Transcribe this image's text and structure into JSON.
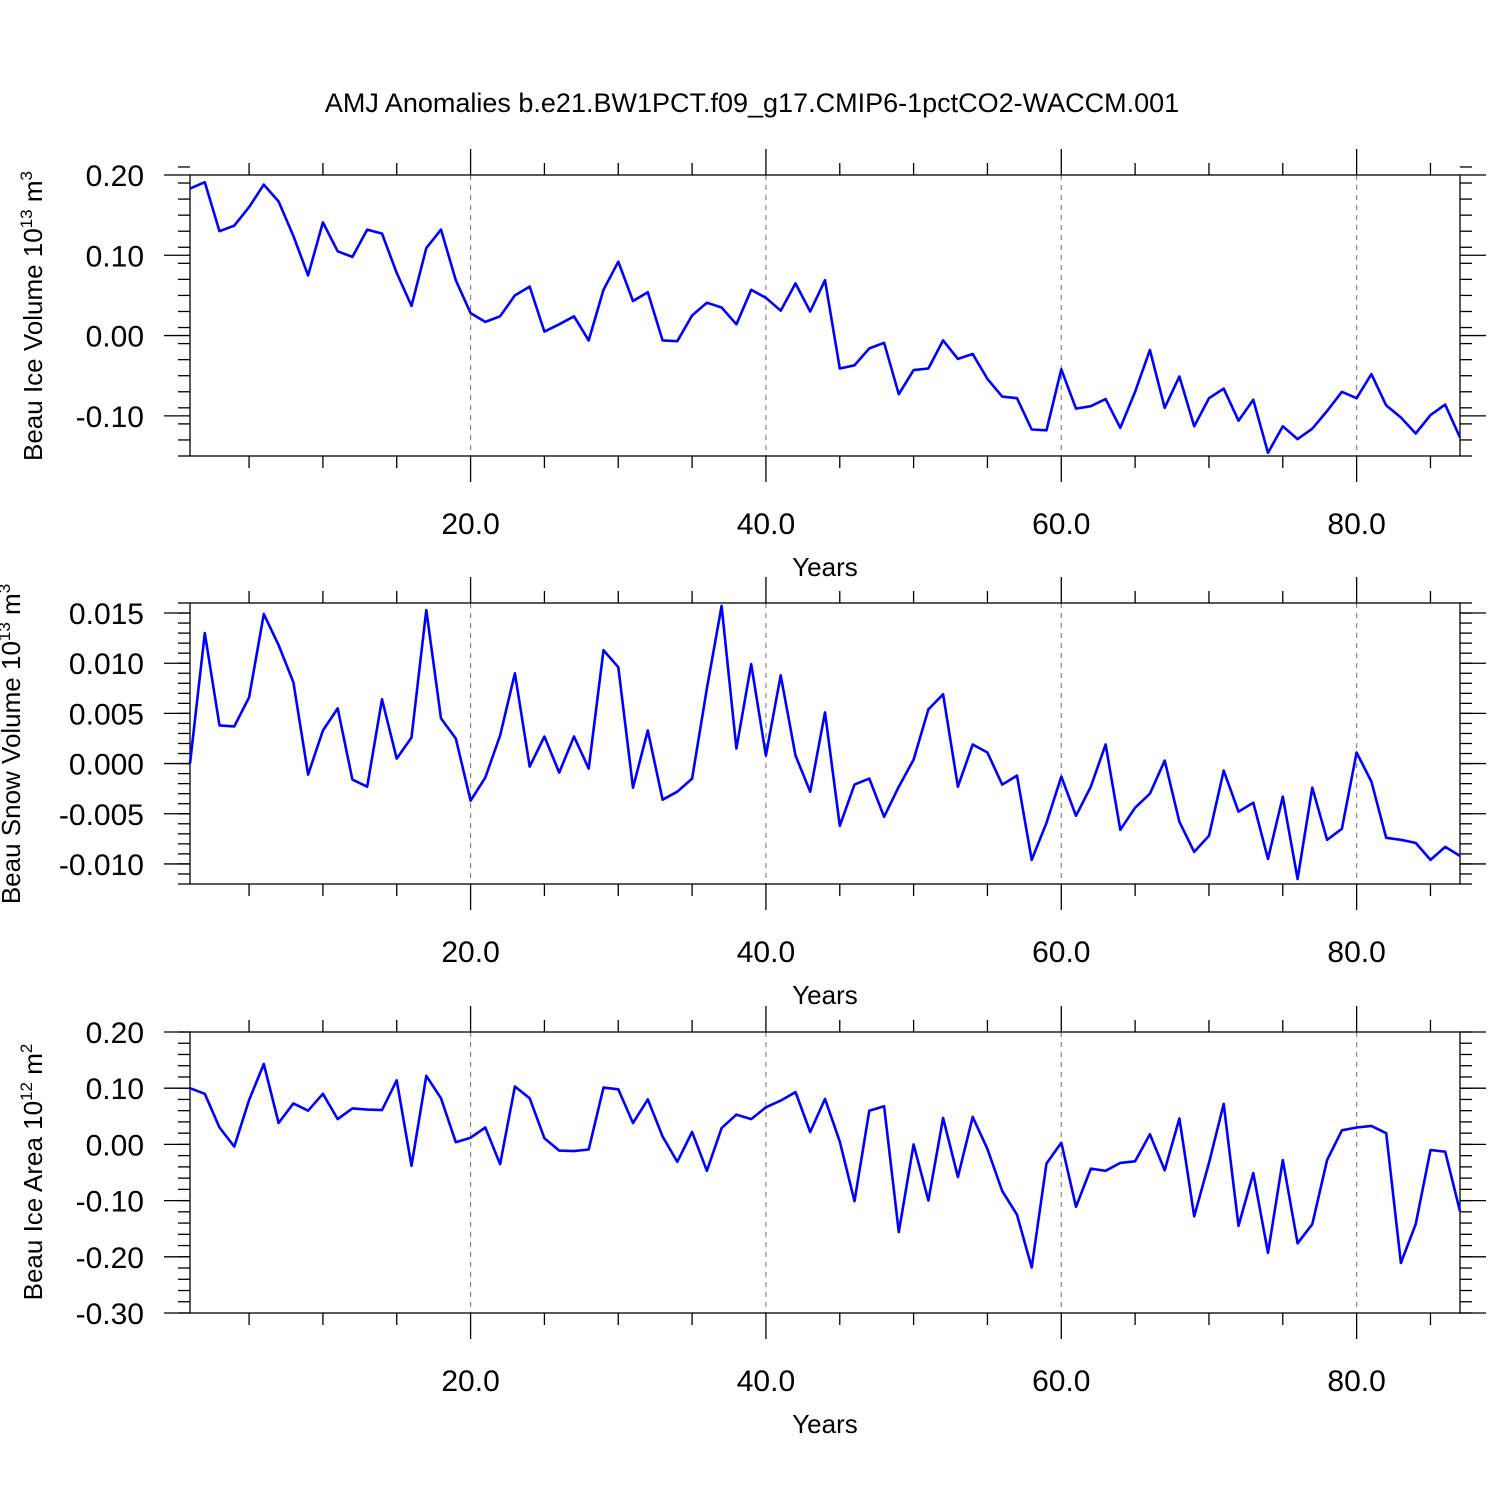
{
  "title": "AMJ Anomalies b.e21.BW1PCT.f09_g17.CMIP6-1pctCO2-WACCM.001",
  "colors": {
    "series": "#0000ff",
    "frame": "#000000",
    "grid": "#888888"
  },
  "chart_data": [
    {
      "type": "line",
      "title": "AMJ Anomalies b.e21.BW1PCT.f09_g17.CMIP6-1pctCO2-WACCM.001",
      "xlabel": "Years",
      "ylabel": "Beau Ice Volume 10",
      "ylabel_sup": "13",
      "ylabel_unit": " m",
      "ylabel_unit_sup": "3",
      "xlim": [
        1,
        87
      ],
      "ylim": [
        -0.15,
        0.2
      ],
      "x_ticks": [
        20,
        40,
        60,
        80
      ],
      "x_tick_labels": [
        "20.0",
        "40.0",
        "60.0",
        "80.0"
      ],
      "y_ticks": [
        -0.1,
        0.0,
        0.1,
        0.2
      ],
      "y_tick_labels": [
        "-0.10",
        "0.00",
        "0.10",
        "0.20"
      ],
      "y_minor_step": 0.02,
      "grid": "dashed vertical at major x ticks",
      "x": [
        1,
        2,
        3,
        4,
        5,
        6,
        7,
        8,
        9,
        10,
        11,
        12,
        13,
        14,
        15,
        16,
        17,
        18,
        19,
        20,
        21,
        22,
        23,
        24,
        25,
        26,
        27,
        28,
        29,
        30,
        31,
        32,
        33,
        34,
        35,
        36,
        37,
        38,
        39,
        40,
        41,
        42,
        43,
        44,
        45,
        46,
        47,
        48,
        49,
        50,
        51,
        52,
        53,
        54,
        55,
        56,
        57,
        58,
        59,
        60,
        61,
        62,
        63,
        64,
        65,
        66,
        67,
        68,
        69,
        70,
        71,
        72,
        73,
        74,
        75,
        76,
        77,
        78,
        79,
        80,
        81,
        82,
        83,
        84,
        85,
        86,
        87
      ],
      "values": [
        0.183,
        0.191,
        0.13,
        0.137,
        0.16,
        0.188,
        0.167,
        0.124,
        0.075,
        0.141,
        0.105,
        0.098,
        0.132,
        0.127,
        0.078,
        0.037,
        0.109,
        0.132,
        0.069,
        0.028,
        0.017,
        0.024,
        0.05,
        0.061,
        0.005,
        0.014,
        0.024,
        -0.006,
        0.057,
        0.092,
        0.043,
        0.054,
        -0.006,
        -0.007,
        0.025,
        0.041,
        0.035,
        0.014,
        0.057,
        0.047,
        0.031,
        0.065,
        0.03,
        0.069,
        -0.041,
        -0.037,
        -0.016,
        -0.009,
        -0.073,
        -0.043,
        -0.041,
        -0.006,
        -0.029,
        -0.023,
        -0.054,
        -0.076,
        -0.078,
        -0.117,
        -0.118,
        -0.042,
        -0.091,
        -0.088,
        -0.079,
        -0.115,
        -0.07,
        -0.018,
        -0.09,
        -0.051,
        -0.113,
        -0.078,
        -0.066,
        -0.106,
        -0.08,
        -0.146,
        -0.113,
        -0.129,
        -0.116,
        -0.094,
        -0.07,
        -0.078,
        -0.048,
        -0.087,
        -0.102,
        -0.122,
        -0.099,
        -0.086,
        -0.127
      ]
    },
    {
      "type": "line",
      "xlabel": "Years",
      "ylabel": "Beau Snow Volume 10",
      "ylabel_sup": "13",
      "ylabel_unit": " m",
      "ylabel_unit_sup": "3",
      "xlim": [
        1,
        87
      ],
      "ylim": [
        -0.012,
        0.016
      ],
      "x_ticks": [
        20,
        40,
        60,
        80
      ],
      "x_tick_labels": [
        "20.0",
        "40.0",
        "60.0",
        "80.0"
      ],
      "y_ticks": [
        -0.01,
        -0.005,
        0.0,
        0.005,
        0.01,
        0.015
      ],
      "y_tick_labels": [
        "-0.010",
        "-0.005",
        "0.000",
        "0.005",
        "0.010",
        "0.015"
      ],
      "y_minor_step": 0.001,
      "grid": "dashed vertical at major x ticks",
      "x": [
        1,
        2,
        3,
        4,
        5,
        6,
        7,
        8,
        9,
        10,
        11,
        12,
        13,
        14,
        15,
        16,
        17,
        18,
        19,
        20,
        21,
        22,
        23,
        24,
        25,
        26,
        27,
        28,
        29,
        30,
        31,
        32,
        33,
        34,
        35,
        36,
        37,
        38,
        39,
        40,
        41,
        42,
        43,
        44,
        45,
        46,
        47,
        48,
        49,
        50,
        51,
        52,
        53,
        54,
        55,
        56,
        57,
        58,
        59,
        60,
        61,
        62,
        63,
        64,
        65,
        66,
        67,
        68,
        69,
        70,
        71,
        72,
        73,
        74,
        75,
        76,
        77,
        78,
        79,
        80,
        81,
        82,
        83,
        84,
        85,
        86,
        87
      ],
      "values": [
        0.0,
        0.013,
        0.0038,
        0.0037,
        0.0066,
        0.0149,
        0.0118,
        0.0081,
        -0.0011,
        0.0033,
        0.0055,
        -0.0016,
        -0.0023,
        0.0064,
        0.0005,
        0.0026,
        0.0153,
        0.0045,
        0.0025,
        -0.0037,
        -0.0014,
        0.0028,
        0.009,
        -0.0003,
        0.0027,
        -0.0009,
        0.0027,
        -0.0005,
        0.0113,
        0.0096,
        -0.0024,
        0.0033,
        -0.0036,
        -0.0028,
        -0.0015,
        0.0075,
        0.0157,
        0.0015,
        0.0099,
        0.0008,
        0.0088,
        0.0008,
        -0.0028,
        0.0051,
        -0.0062,
        -0.0021,
        -0.0015,
        -0.0053,
        -0.0023,
        0.0004,
        0.0054,
        0.0069,
        -0.0023,
        0.0019,
        0.0011,
        -0.0021,
        -0.0012,
        -0.0096,
        -0.0059,
        -0.0013,
        -0.0052,
        -0.0023,
        0.0019,
        -0.0066,
        -0.0044,
        -0.003,
        0.0003,
        -0.0058,
        -0.0088,
        -0.0072,
        -0.0007,
        -0.0048,
        -0.0039,
        -0.0095,
        -0.0033,
        -0.0115,
        -0.0024,
        -0.0076,
        -0.0065,
        0.0011,
        -0.0018,
        -0.0074,
        -0.0076,
        -0.0079,
        -0.0096,
        -0.0083,
        -0.0092
      ]
    },
    {
      "type": "line",
      "xlabel": "Years",
      "ylabel": "Beau Ice Area 10",
      "ylabel_sup": "12",
      "ylabel_unit": " m",
      "ylabel_unit_sup": "2",
      "xlim": [
        1,
        87
      ],
      "ylim": [
        -0.3,
        0.2
      ],
      "x_ticks": [
        20,
        40,
        60,
        80
      ],
      "x_tick_labels": [
        "20.0",
        "40.0",
        "60.0",
        "80.0"
      ],
      "y_ticks": [
        -0.3,
        -0.2,
        -0.1,
        0.0,
        0.1,
        0.2
      ],
      "y_tick_labels": [
        "-0.30",
        "-0.20",
        "-0.10",
        "0.00",
        "0.10",
        "0.20"
      ],
      "y_minor_step": 0.02,
      "grid": "dashed vertical at major x ticks",
      "x": [
        1,
        2,
        3,
        4,
        5,
        6,
        7,
        8,
        9,
        10,
        11,
        12,
        13,
        14,
        15,
        16,
        17,
        18,
        19,
        20,
        21,
        22,
        23,
        24,
        25,
        26,
        27,
        28,
        29,
        30,
        31,
        32,
        33,
        34,
        35,
        36,
        37,
        38,
        39,
        40,
        41,
        42,
        43,
        44,
        45,
        46,
        47,
        48,
        49,
        50,
        51,
        52,
        53,
        54,
        55,
        56,
        57,
        58,
        59,
        60,
        61,
        62,
        63,
        64,
        65,
        66,
        67,
        68,
        69,
        70,
        71,
        72,
        73,
        74,
        75,
        76,
        77,
        78,
        79,
        80,
        81,
        82,
        83,
        84,
        85,
        86,
        87
      ],
      "values": [
        0.1,
        0.09,
        0.03,
        -0.004,
        0.079,
        0.143,
        0.038,
        0.073,
        0.06,
        0.09,
        0.045,
        0.064,
        0.062,
        0.061,
        0.114,
        -0.038,
        0.122,
        0.082,
        0.004,
        0.012,
        0.03,
        -0.035,
        0.103,
        0.082,
        0.011,
        -0.011,
        -0.012,
        -0.009,
        0.101,
        0.098,
        0.038,
        0.08,
        0.014,
        -0.031,
        0.022,
        -0.047,
        0.029,
        0.053,
        0.045,
        0.066,
        0.078,
        0.093,
        0.022,
        0.081,
        0.005,
        -0.101,
        0.06,
        0.068,
        -0.156,
        0.0,
        -0.1,
        0.047,
        -0.058,
        0.049,
        -0.008,
        -0.083,
        -0.125,
        -0.219,
        -0.034,
        0.003,
        -0.111,
        -0.043,
        -0.047,
        -0.033,
        -0.03,
        0.018,
        -0.046,
        0.046,
        -0.128,
        -0.033,
        0.072,
        -0.145,
        -0.051,
        -0.193,
        -0.028,
        -0.176,
        -0.142,
        -0.028,
        0.025,
        0.03,
        0.033,
        0.02,
        -0.211,
        -0.142,
        -0.01,
        -0.013,
        -0.119
      ]
    }
  ]
}
